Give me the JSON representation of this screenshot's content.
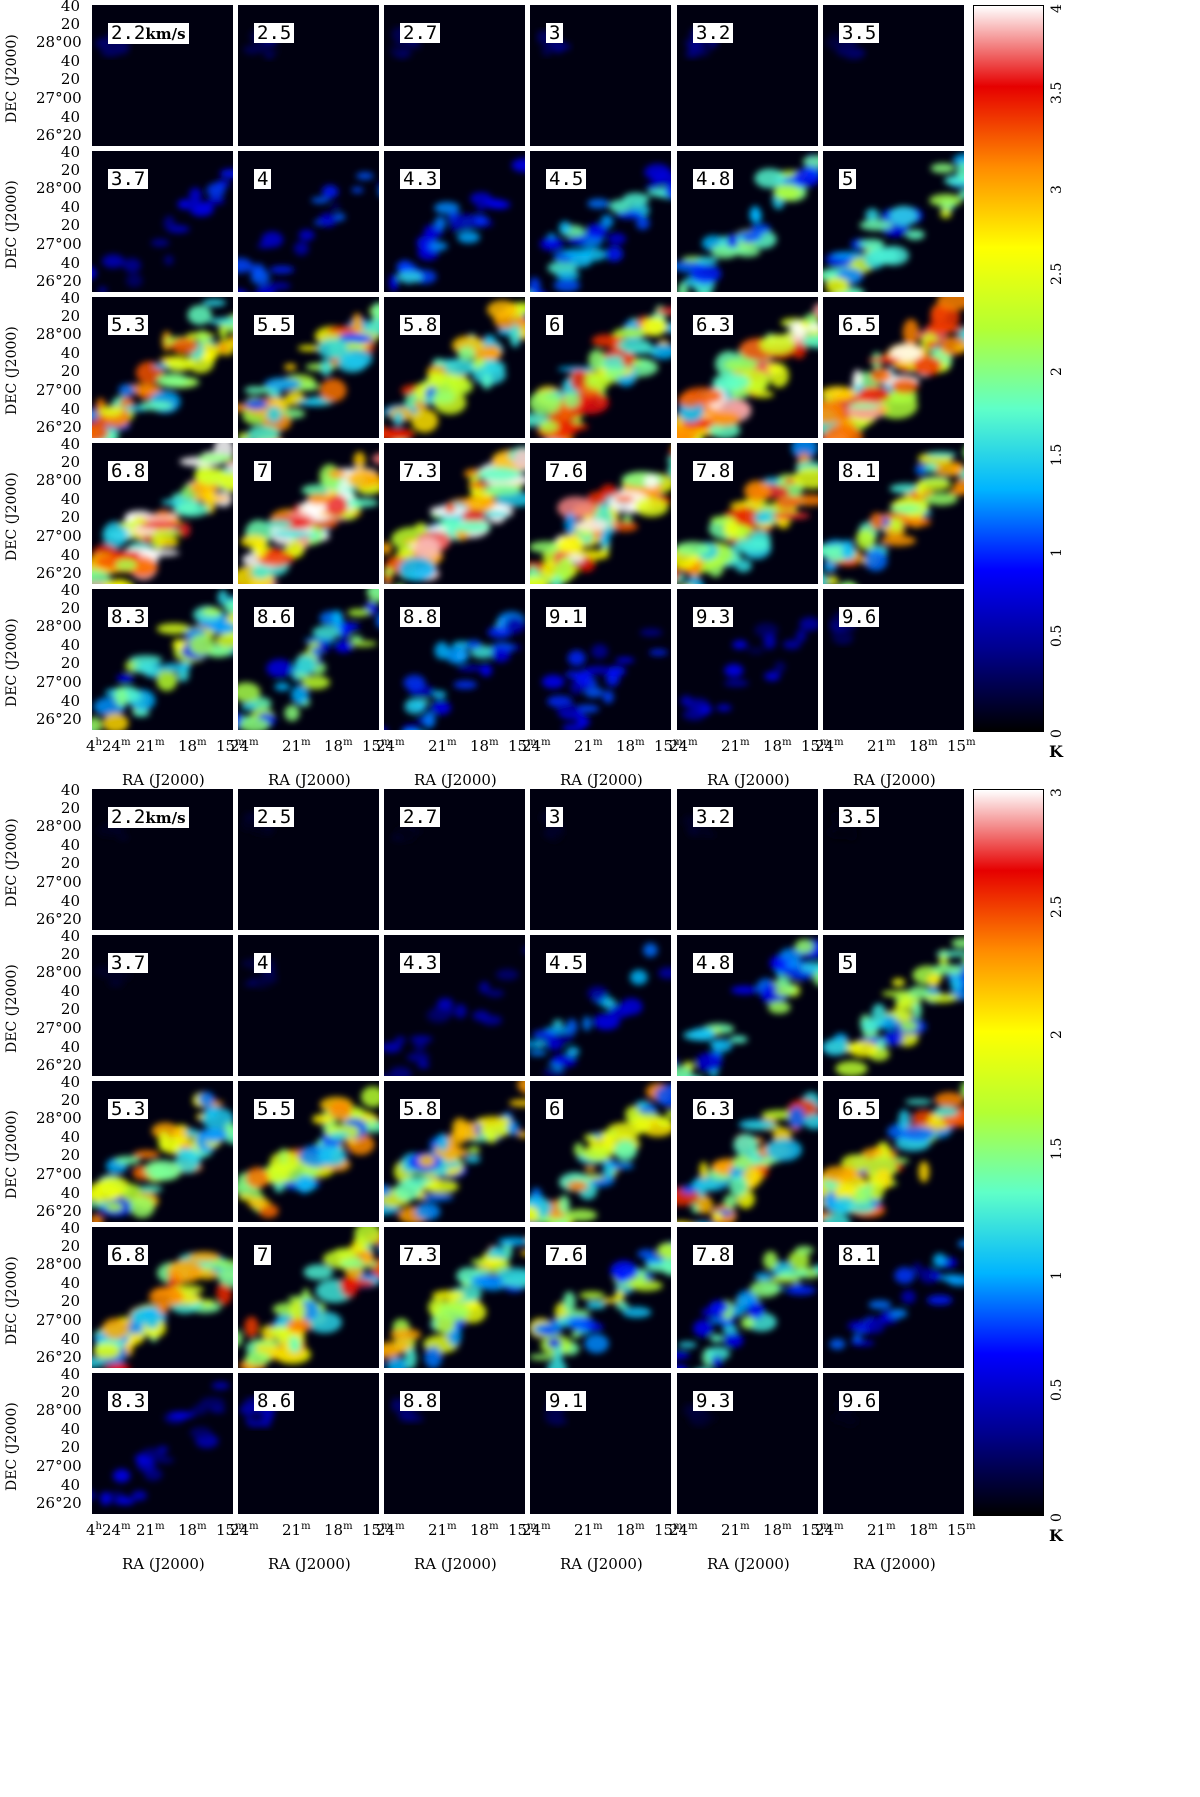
{
  "blocks": [
    {
      "velocities": [
        "2.2",
        "2.5",
        "2.7",
        "3",
        "3.2",
        "3.5",
        "3.7",
        "4",
        "4.3",
        "4.5",
        "4.8",
        "5",
        "5.3",
        "5.5",
        "5.8",
        "6",
        "6.3",
        "6.5",
        "6.8",
        "7",
        "7.3",
        "7.6",
        "7.8",
        "8.1",
        "8.3",
        "8.6",
        "8.8",
        "9.1",
        "9.3",
        "9.6"
      ],
      "velocity_unit": "km/s",
      "colorbar": {
        "ticks": [
          "0",
          "0.5",
          "1",
          "1.5",
          "2",
          "2.5",
          "3",
          "3.5",
          "4"
        ],
        "vmax": 4,
        "unit": "K"
      },
      "intensity_level": [
        0.4,
        0.4,
        0.4,
        0.4,
        0.4,
        0.3,
        0.8,
        0.9,
        1.2,
        1.5,
        1.8,
        2.0,
        2.6,
        2.6,
        2.7,
        2.9,
        3.2,
        3.5,
        3.6,
        3.6,
        3.4,
        3.2,
        2.9,
        2.6,
        2.2,
        1.8,
        1.3,
        1.0,
        0.7,
        0.4
      ]
    },
    {
      "velocities": [
        "2.2",
        "2.5",
        "2.7",
        "3",
        "3.2",
        "3.5",
        "3.7",
        "4",
        "4.3",
        "4.5",
        "4.8",
        "5",
        "5.3",
        "5.5",
        "5.8",
        "6",
        "6.3",
        "6.5",
        "6.8",
        "7",
        "7.3",
        "7.6",
        "7.8",
        "8.1",
        "8.3",
        "8.6",
        "8.8",
        "9.1",
        "9.3",
        "9.6"
      ],
      "velocity_unit": "km/s",
      "colorbar": {
        "ticks": [
          "0",
          "0.5",
          "1",
          "1.5",
          "2",
          "2.5",
          "3"
        ],
        "vmax": 3,
        "unit": "K"
      },
      "intensity_level": [
        0.1,
        0.1,
        0.1,
        0.1,
        0.1,
        0.05,
        0.1,
        0.2,
        0.5,
        0.9,
        1.4,
        1.6,
        1.9,
        1.9,
        1.8,
        1.9,
        2.0,
        2.0,
        2.1,
        2.1,
        1.8,
        1.6,
        1.3,
        0.9,
        0.6,
        0.4,
        0.3,
        0.2,
        0.15,
        0.1
      ]
    }
  ],
  "y_ticks": [
    "40",
    "20",
    "28°00",
    "40",
    "20",
    "27°00",
    "40",
    "26°20"
  ],
  "x_ticks_first": [
    "4h24m",
    "21m",
    "18m",
    "15m"
  ],
  "x_ticks_other": [
    "24m",
    "21m",
    "18m",
    "15m"
  ],
  "x_axis_title": "RA (J2000)",
  "y_axis_title": "DEC (J2000)",
  "colors": {
    "background": "#000010",
    "colormap": [
      "#000000",
      "#00008c",
      "#0000ff",
      "#00b4ff",
      "#5fffc8",
      "#b4ff32",
      "#ffff00",
      "#ff8c00",
      "#e60000",
      "#ffffff"
    ]
  }
}
